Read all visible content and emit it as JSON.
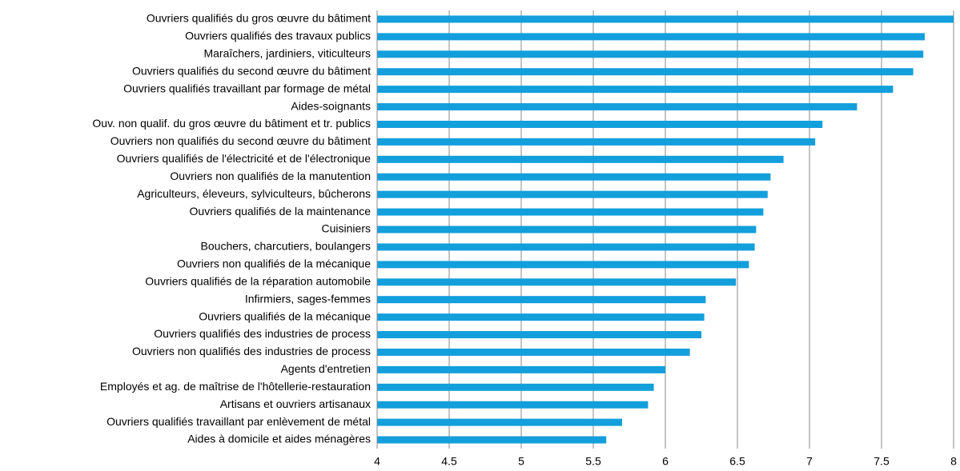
{
  "chart_data": {
    "type": "hbar",
    "categories": [
      "Ouvriers qualifiés du gros œuvre du bâtiment",
      "Ouvriers qualifiés des travaux publics",
      "Maraîchers, jardiniers, viticulteurs",
      "Ouvriers qualifiés du second œuvre du bâtiment",
      "Ouvriers qualifiés travaillant par formage de métal",
      "Aides-soignants",
      "Ouv. non qualif. du gros œuvre du bâtiment et tr. publics",
      "Ouvriers non qualifiés du second œuvre du bâtiment",
      "Ouvriers qualifiés de l'électricité et de l'électronique",
      "Ouvriers non qualifiés de la manutention",
      "Agriculteurs, éleveurs, sylviculteurs, bûcherons",
      "Ouvriers qualifiés de la maintenance",
      "Cuisiniers",
      "Bouchers, charcutiers, boulangers",
      "Ouvriers non qualifiés de la mécanique",
      "Ouvriers qualifiés de la réparation automobile",
      "Infirmiers, sages-femmes",
      "Ouvriers qualifiés de la mécanique",
      "Ouvriers qualifiés des industries de process",
      "Ouvriers non qualifiés des industries de process",
      "Agents d'entretien",
      "Employés et ag. de maîtrise de l'hôtellerie-restauration",
      "Artisans et ouvriers artisanaux",
      "Ouvriers qualifiés travaillant par enlèvement de métal",
      "Aides à domicile et aides ménagères"
    ],
    "values": [
      8.0,
      7.8,
      7.79,
      7.72,
      7.58,
      7.33,
      7.09,
      7.04,
      6.82,
      6.73,
      6.71,
      6.68,
      6.63,
      6.62,
      6.58,
      6.49,
      6.28,
      6.27,
      6.25,
      6.17,
      6.0,
      5.92,
      5.88,
      5.7,
      5.59
    ],
    "color": "#139fdc",
    "xlim": [
      4,
      8
    ],
    "xticks": [
      4,
      4.5,
      5,
      5.5,
      6,
      6.5,
      7,
      7.5,
      8
    ],
    "grid": true
  }
}
